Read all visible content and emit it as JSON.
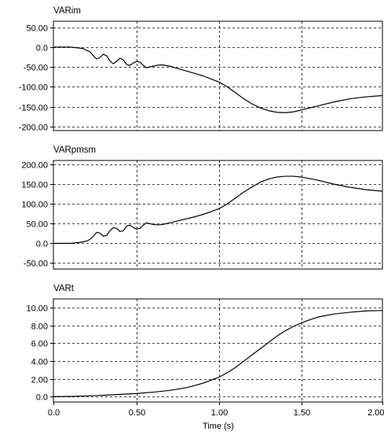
{
  "chart_data": [
    {
      "type": "line",
      "title": "VARim",
      "xlim": [
        0,
        2.0
      ],
      "ylim": [
        -210,
        65
      ],
      "yticks": [
        "50.00",
        "0.0",
        "-50.00",
        "-100.00",
        "-150.00",
        "-200.00"
      ],
      "ytick_values": [
        50,
        0,
        -50,
        -100,
        -150,
        -200
      ],
      "grid": true,
      "series": [
        {
          "color": "#000000",
          "x": [
            0,
            0.05,
            0.1,
            0.15,
            0.18,
            0.2,
            0.22,
            0.24,
            0.26,
            0.28,
            0.3,
            0.32,
            0.34,
            0.36,
            0.38,
            0.4,
            0.42,
            0.44,
            0.46,
            0.48,
            0.5,
            0.52,
            0.54,
            0.56,
            0.58,
            0.6,
            0.62,
            0.64,
            0.66,
            0.7,
            0.75,
            0.8,
            0.85,
            0.9,
            0.95,
            1.0,
            1.05,
            1.1,
            1.15,
            1.2,
            1.25,
            1.3,
            1.35,
            1.4,
            1.45,
            1.5,
            1.6,
            1.7,
            1.8,
            1.9,
            2.0
          ],
          "y": [
            0,
            0,
            0,
            -2,
            -4,
            -8,
            -12,
            -22,
            -30,
            -26,
            -18,
            -22,
            -35,
            -42,
            -36,
            -28,
            -32,
            -44,
            -46,
            -40,
            -36,
            -38,
            -46,
            -52,
            -50,
            -48,
            -46,
            -45,
            -45,
            -48,
            -54,
            -60,
            -66,
            -72,
            -80,
            -88,
            -100,
            -115,
            -130,
            -143,
            -153,
            -160,
            -164,
            -165,
            -163,
            -158,
            -148,
            -138,
            -130,
            -125,
            -122
          ]
        }
      ]
    },
    {
      "type": "line",
      "title": "VARpmsm",
      "xlim": [
        0,
        2.0
      ],
      "ylim": [
        -65,
        210
      ],
      "yticks": [
        "200.00",
        "150.00",
        "100.00",
        "50.00",
        "0.0",
        "-50.00"
      ],
      "ytick_values": [
        200,
        150,
        100,
        50,
        0,
        -50
      ],
      "grid": true,
      "series": [
        {
          "color": "#000000",
          "x": [
            0,
            0.05,
            0.1,
            0.15,
            0.18,
            0.2,
            0.22,
            0.24,
            0.26,
            0.28,
            0.3,
            0.32,
            0.34,
            0.36,
            0.38,
            0.4,
            0.42,
            0.44,
            0.46,
            0.48,
            0.5,
            0.52,
            0.54,
            0.56,
            0.58,
            0.6,
            0.62,
            0.64,
            0.66,
            0.7,
            0.75,
            0.8,
            0.85,
            0.9,
            0.95,
            1.0,
            1.05,
            1.1,
            1.15,
            1.2,
            1.25,
            1.3,
            1.35,
            1.4,
            1.45,
            1.5,
            1.6,
            1.7,
            1.8,
            1.9,
            2.0
          ],
          "y": [
            0,
            0,
            0,
            2,
            4,
            6,
            10,
            18,
            28,
            26,
            18,
            20,
            32,
            40,
            38,
            30,
            32,
            44,
            46,
            40,
            36,
            38,
            46,
            52,
            50,
            48,
            47,
            47,
            48,
            52,
            57,
            62,
            67,
            73,
            80,
            88,
            100,
            115,
            130,
            143,
            155,
            163,
            168,
            170,
            170,
            168,
            160,
            150,
            142,
            136,
            132
          ]
        }
      ]
    },
    {
      "type": "line",
      "title": "VARt",
      "xlim": [
        0,
        2.0
      ],
      "ylim": [
        -0.6,
        11.0
      ],
      "yticks": [
        "10.00",
        "8.00",
        "6.00",
        "4.00",
        "2.00",
        "0.0"
      ],
      "ytick_values": [
        10,
        8,
        6,
        4,
        2,
        0
      ],
      "xticks": [
        "0.0",
        "0.50",
        "1.00",
        "1.50",
        "2.00"
      ],
      "xtick_values": [
        0,
        0.5,
        1.0,
        1.5,
        2.0
      ],
      "xlabel": "Time (s)",
      "grid": true,
      "series": [
        {
          "color": "#000000",
          "x": [
            0,
            0.1,
            0.2,
            0.3,
            0.4,
            0.5,
            0.6,
            0.7,
            0.8,
            0.9,
            1.0,
            1.05,
            1.1,
            1.15,
            1.2,
            1.25,
            1.3,
            1.35,
            1.4,
            1.45,
            1.5,
            1.55,
            1.6,
            1.7,
            1.8,
            1.9,
            2.0
          ],
          "y": [
            0,
            0.02,
            0.08,
            0.15,
            0.25,
            0.35,
            0.5,
            0.7,
            1.0,
            1.5,
            2.2,
            2.7,
            3.3,
            4.0,
            4.7,
            5.4,
            6.1,
            6.8,
            7.4,
            7.9,
            8.3,
            8.65,
            8.95,
            9.3,
            9.5,
            9.65,
            9.7
          ]
        }
      ]
    }
  ]
}
